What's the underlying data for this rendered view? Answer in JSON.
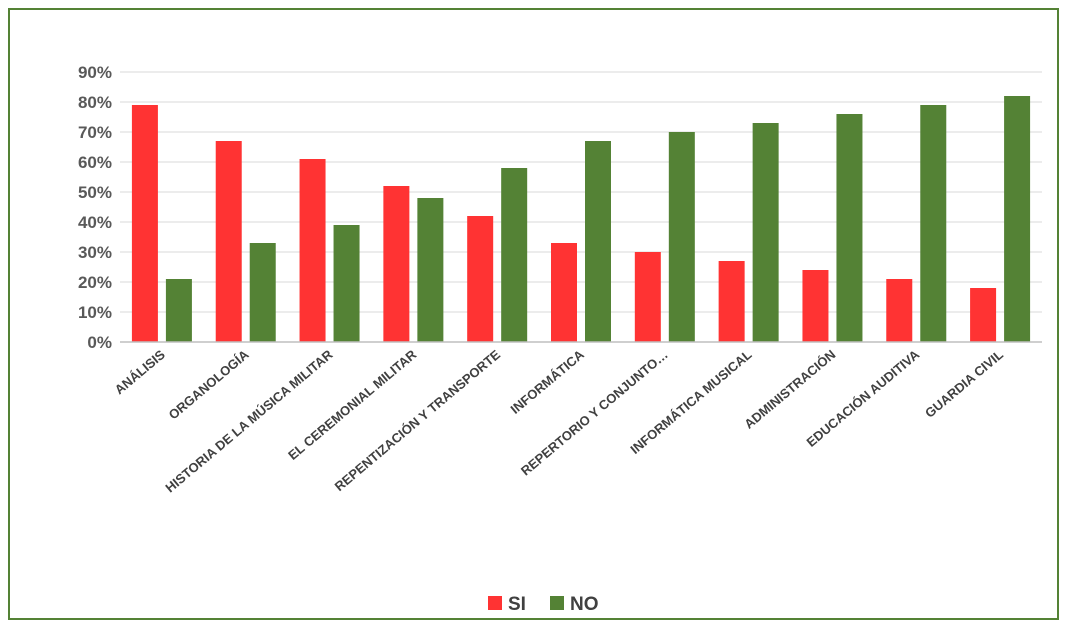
{
  "chart_data": {
    "type": "bar",
    "title": "",
    "xlabel": "",
    "ylabel": "",
    "ylim": [
      0,
      90
    ],
    "y_ticks": [
      "0%",
      "10%",
      "20%",
      "30%",
      "40%",
      "50%",
      "60%",
      "70%",
      "80%",
      "90%"
    ],
    "grid": true,
    "legend_position": "bottom",
    "categories": [
      "ANÁLISIS",
      "ORGANOLOGÍA",
      "HISTORIA DE LA MÚSICA MILITAR",
      "EL CEREMONIAL MILITAR",
      "REPENTIZACIÓN Y TRANSPORTE",
      "INFORMÁTICA",
      "REPERTORIO Y CONJUNTO…",
      "INFORMÁTICA MUSICAL",
      "ADMINISTRACIÓN",
      "EDUCACIÓN AUDITIVA",
      "GUARDIA CIVIL"
    ],
    "series": [
      {
        "name": "SI",
        "color": "#ff3333",
        "values": [
          79,
          67,
          61,
          52,
          42,
          33,
          30,
          27,
          24,
          21,
          18
        ]
      },
      {
        "name": "NO",
        "color": "#548235",
        "values": [
          21,
          33,
          39,
          48,
          58,
          67,
          70,
          73,
          76,
          79,
          82
        ]
      }
    ]
  }
}
